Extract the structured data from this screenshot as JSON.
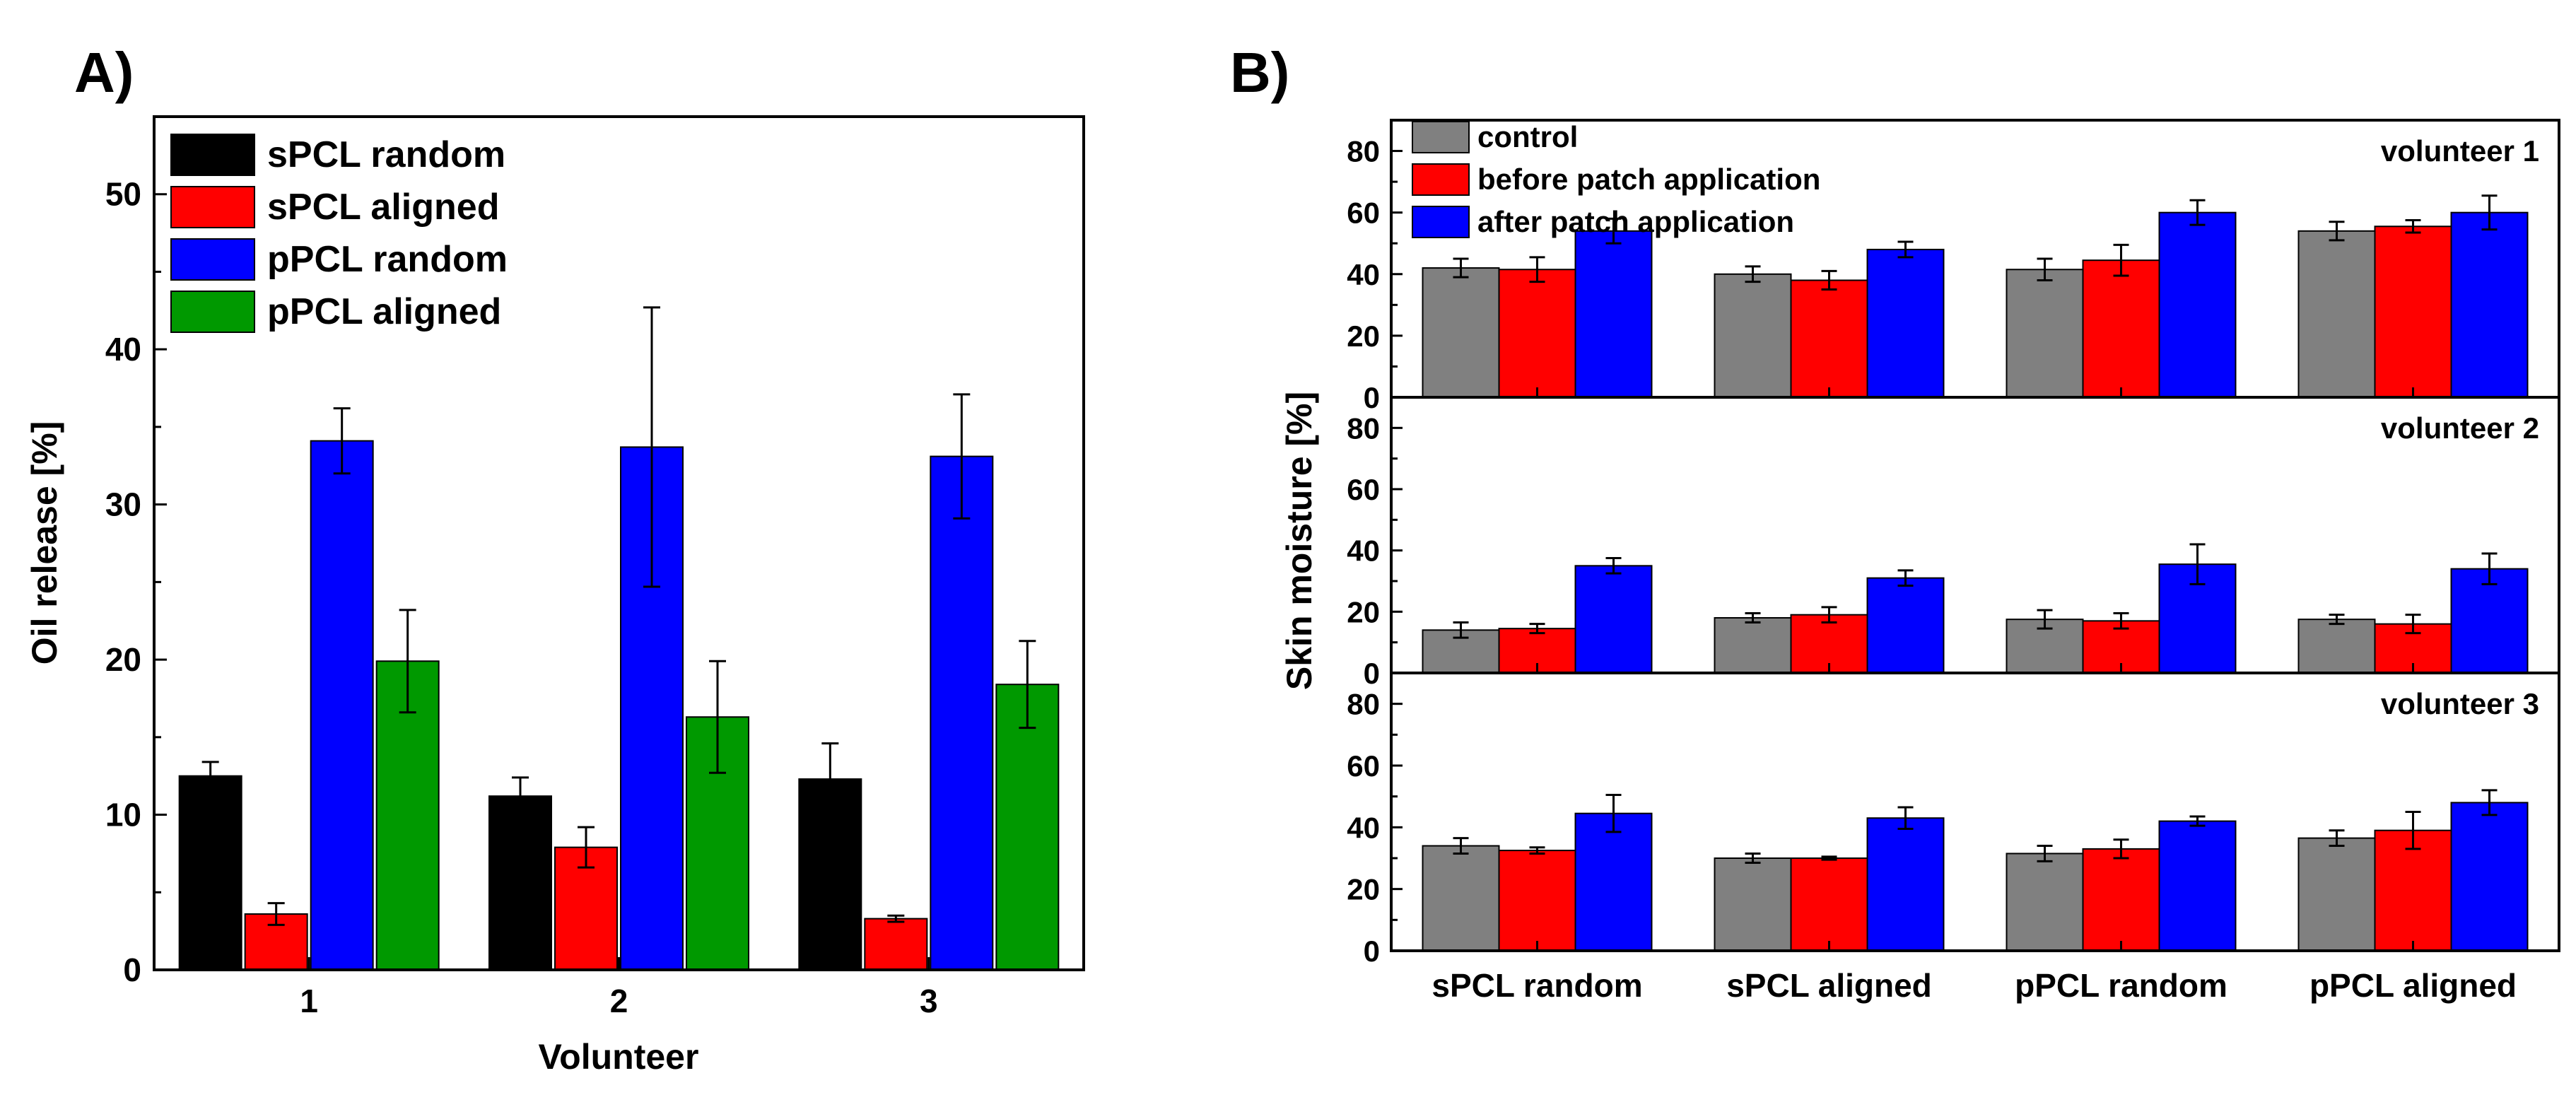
{
  "chart_data": [
    {
      "panel": "A)",
      "type": "bar",
      "categories": [
        "1",
        "2",
        "3"
      ],
      "xlabel": "Volunteer",
      "ylabel": "Oil release [%]",
      "ylim": [
        0,
        55
      ],
      "yticks": [
        0,
        10,
        20,
        30,
        40,
        50
      ],
      "legend_position": "top-left",
      "series": [
        {
          "name": "sPCL random",
          "color": "#000000",
          "values": [
            12.5,
            11.2,
            12.3
          ],
          "errors": [
            0.9,
            1.2,
            2.3
          ]
        },
        {
          "name": "sPCL aligned",
          "color": "#ff0000",
          "values": [
            3.6,
            7.9,
            3.3
          ],
          "errors": [
            0.7,
            1.3,
            0.2
          ]
        },
        {
          "name": "pPCL random",
          "color": "#0000ff",
          "values": [
            34.1,
            33.7,
            33.1
          ],
          "errors": [
            2.1,
            9.0,
            4.0
          ]
        },
        {
          "name": "pPCL aligned",
          "color": "#009900",
          "values": [
            19.9,
            16.3,
            18.4
          ],
          "errors": [
            3.3,
            3.6,
            2.8
          ]
        }
      ]
    },
    {
      "panel": "B)",
      "type": "bar",
      "categories": [
        "sPCL random",
        "sPCL aligned",
        "pPCL random",
        "pPCL aligned"
      ],
      "ylabel": "Skin moisture [%]",
      "ylim": [
        0,
        90
      ],
      "yticks": [
        0,
        20,
        40,
        60,
        80
      ],
      "legend_position": "top-left",
      "legend": [
        {
          "name": "control",
          "color": "#808080"
        },
        {
          "name": "before patch application",
          "color": "#ff0000"
        },
        {
          "name": "after patch application",
          "color": "#0000ff"
        }
      ],
      "subplots": [
        {
          "title": "volunteer 1",
          "series": [
            {
              "name": "control",
              "values": [
                42,
                40,
                41.5,
                54
              ],
              "errors": [
                3,
                2.5,
                3.5,
                3
              ]
            },
            {
              "name": "before patch application",
              "values": [
                41.5,
                38,
                44.5,
                55.5
              ],
              "errors": [
                4,
                3,
                5,
                2
              ]
            },
            {
              "name": "after patch application",
              "values": [
                54,
                48,
                60,
                60
              ],
              "errors": [
                4,
                2.5,
                4,
                5.5
              ]
            }
          ]
        },
        {
          "title": "volunteer 2",
          "series": [
            {
              "name": "control",
              "values": [
                14,
                18,
                17.5,
                17.5
              ],
              "errors": [
                2.5,
                1.5,
                3,
                1.5
              ]
            },
            {
              "name": "before patch application",
              "values": [
                14.5,
                19,
                17,
                16
              ],
              "errors": [
                1.5,
                2.5,
                2.5,
                3
              ]
            },
            {
              "name": "after patch application",
              "values": [
                35,
                31,
                35.5,
                34
              ],
              "errors": [
                2.5,
                2.5,
                6.5,
                5
              ]
            }
          ]
        },
        {
          "title": "volunteer 3",
          "series": [
            {
              "name": "control",
              "values": [
                34,
                30,
                31.5,
                36.5
              ],
              "errors": [
                2.5,
                1.5,
                2.5,
                2.5
              ]
            },
            {
              "name": "before patch application",
              "values": [
                32.5,
                30,
                33,
                39
              ],
              "errors": [
                1,
                0.5,
                3,
                6
              ]
            },
            {
              "name": "after patch application",
              "values": [
                44.5,
                43,
                42,
                48
              ],
              "errors": [
                6,
                3.5,
                1.5,
                4
              ]
            }
          ]
        }
      ]
    }
  ]
}
